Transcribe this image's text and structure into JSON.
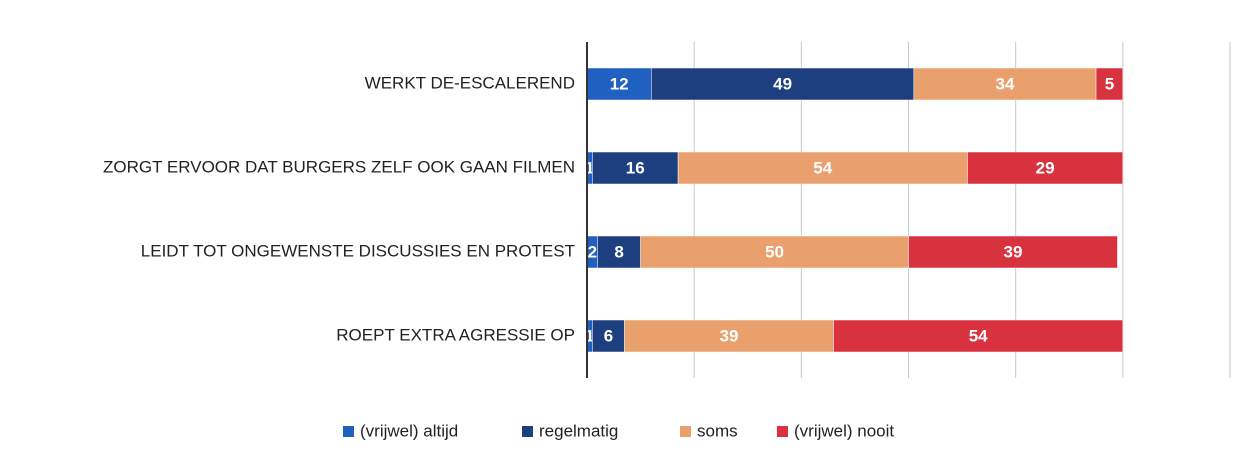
{
  "chart_data": {
    "type": "stacked_barh",
    "categories": [
      "WERKT DE-ESCALEREND",
      "ZORGT ERVOOR DAT BURGERS ZELF OOK GAAN FILMEN",
      "LEIDT TOT ONGEWENSTE DISCUSSIES EN PROTEST",
      "ROEPT EXTRA AGRESSIE OP"
    ],
    "series": [
      {
        "name": "(vrijwel) altijd",
        "color": "#2060c0",
        "values": [
          12,
          1,
          2,
          1
        ]
      },
      {
        "name": "regelmatig",
        "color": "#1d3f80",
        "values": [
          49,
          16,
          8,
          6
        ]
      },
      {
        "name": "soms",
        "color": "#e9a06c",
        "values": [
          34,
          54,
          50,
          39
        ]
      },
      {
        "name": "(vrijwel) nooit",
        "color": "#d8323f",
        "values": [
          5,
          29,
          39,
          54
        ]
      }
    ],
    "xlim": [
      0,
      120
    ],
    "xticks": [
      0,
      20,
      40,
      60,
      80,
      100,
      120
    ],
    "grid": true,
    "legend": "bottom"
  }
}
